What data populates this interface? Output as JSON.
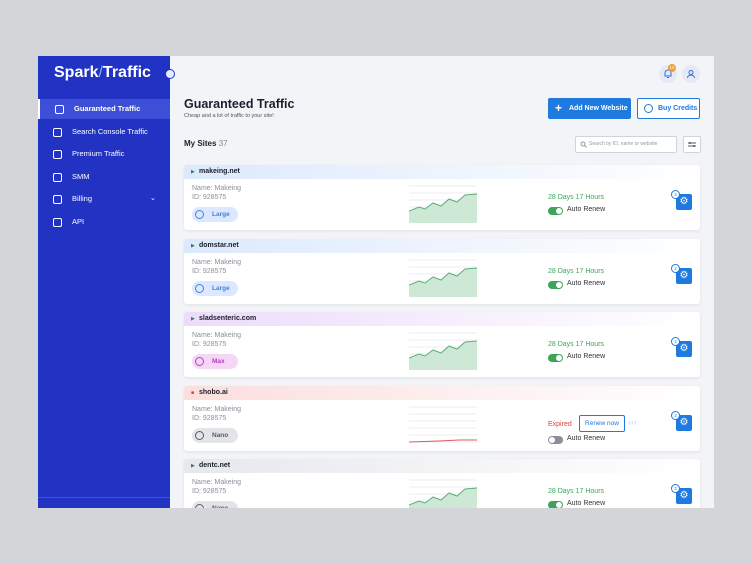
{
  "sidebar": {
    "brand": [
      "Spark",
      "Traffic"
    ],
    "menu": [
      "Guaranteed Traffic",
      "Search Console Traffic",
      "Premium Traffic",
      "SMM",
      "Billing",
      "API"
    ]
  },
  "header": {
    "notification_count": "12",
    "title": "Guaranteed Traffic",
    "subtitle": "Cheap and a lot of traffic to your site!",
    "buttons": [
      "Add New Website",
      "Buy Credits"
    ]
  },
  "sites": {
    "label": "My Sites",
    "count": 37,
    "search_placeholder": "Search by ID, name or website",
    "items": [
      {
        "domain": "makeing.net",
        "name": "Name: Makeing",
        "id": "ID: 928575",
        "plan": "Large",
        "plan_color": "#4a7fd6",
        "plan_bg": "#dbe8ff",
        "strip_color": "#dce9fd",
        "status": "28 Days 17 Hours",
        "renew": "Auto Renew",
        "auto_renew_on": true,
        "badge": "2"
      },
      {
        "domain": "domstar.net",
        "name": "Name: Makeing",
        "id": "ID: 928575",
        "plan": "Large",
        "plan_color": "#4a7fd6",
        "plan_bg": "#dbe8ff",
        "strip_color": "#dce9fd",
        "status": "28 Days 17 Hours",
        "renew": "Auto Renew",
        "auto_renew_on": true,
        "badge": "2"
      },
      {
        "domain": "sladsenteric.com",
        "name": "Name: Makeing",
        "id": "ID: 928575",
        "plan": "Max",
        "plan_color": "#b43fc0",
        "plan_bg": "#f6d6f7",
        "strip_color": "#ecdcfb",
        "status": "28 Days 17 Hours",
        "renew": "Auto Renew",
        "auto_renew_on": true,
        "badge": "2"
      },
      {
        "domain": "shobo.ai",
        "name": "Name: Makeing",
        "id": "ID: 928575",
        "plan": "Nano",
        "plan_color": "#555b66",
        "plan_bg": "#e2e4e8",
        "strip_color": "#fbdede",
        "status": "Expired",
        "action": "Renew now",
        "renew": "Auto Renew",
        "auto_renew_on": false,
        "badge": "2"
      },
      {
        "domain": "dentc.net",
        "name": "Name: Makeing",
        "id": "ID: 928575",
        "plan": "Nano",
        "plan_color": "#555b66",
        "plan_bg": "#e2e4e8",
        "strip_color": "#e6e8ec",
        "status": "28 Days 17 Hours",
        "renew": "Auto Renew",
        "auto_renew_on": true,
        "badge": "2"
      }
    ]
  }
}
